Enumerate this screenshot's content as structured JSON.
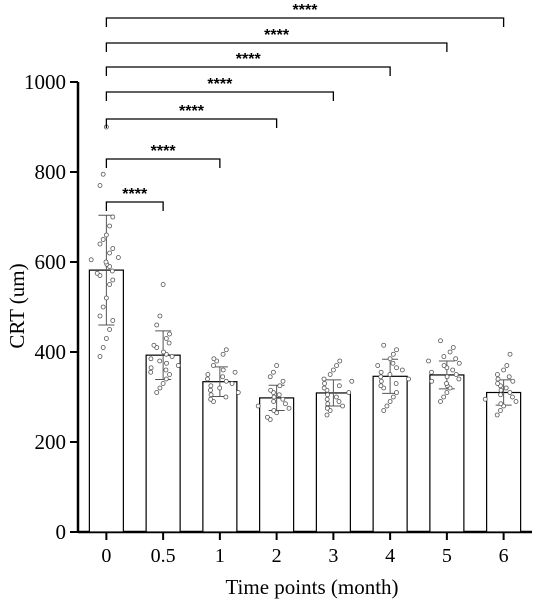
{
  "chart_data": {
    "type": "bar",
    "xlabel": "Time points (month)",
    "ylabel": "CRT (um)",
    "ylim": [
      0,
      1000
    ],
    "yticks": [
      0,
      200,
      400,
      600,
      800,
      1000
    ],
    "grid": false,
    "categories": [
      "0",
      "0.5",
      "1",
      "2",
      "3",
      "4",
      "5",
      "6"
    ],
    "values": [
      582,
      393,
      334,
      298,
      309,
      346,
      349,
      310
    ],
    "error_sd": [
      122,
      54,
      33,
      28,
      29,
      38,
      31,
      28
    ],
    "points": [
      [
        900,
        795,
        770,
        700,
        680,
        660,
        650,
        640,
        630,
        620,
        610,
        605,
        600,
        595,
        590,
        580,
        575,
        570,
        560,
        550,
        520,
        500,
        480,
        470,
        450,
        430,
        410,
        390
      ],
      [
        550,
        480,
        460,
        440,
        430,
        420,
        415,
        410,
        400,
        395,
        390,
        385,
        380,
        375,
        370,
        365,
        360,
        355,
        350,
        340,
        330,
        320,
        310
      ],
      [
        405,
        395,
        385,
        380,
        370,
        360,
        355,
        350,
        345,
        340,
        335,
        330,
        325,
        320,
        315,
        310,
        305,
        300,
        295,
        290
      ],
      [
        370,
        355,
        345,
        335,
        325,
        315,
        310,
        305,
        300,
        295,
        290,
        285,
        280,
        275,
        270,
        265,
        255,
        250
      ],
      [
        380,
        370,
        360,
        350,
        340,
        335,
        330,
        325,
        320,
        315,
        310,
        305,
        300,
        295,
        290,
        285,
        280,
        275,
        270,
        260
      ],
      [
        415,
        405,
        395,
        385,
        375,
        370,
        365,
        360,
        355,
        350,
        345,
        340,
        335,
        330,
        325,
        320,
        310,
        300,
        290,
        280,
        270
      ],
      [
        425,
        410,
        400,
        390,
        385,
        380,
        375,
        370,
        365,
        360,
        355,
        350,
        345,
        340,
        335,
        330,
        325,
        320,
        310,
        300,
        290
      ],
      [
        395,
        370,
        360,
        350,
        345,
        340,
        335,
        330,
        325,
        320,
        315,
        310,
        305,
        300,
        295,
        290,
        285,
        280,
        270,
        260
      ]
    ],
    "comparisons": [
      {
        "from": "0",
        "to": "0.5",
        "label": "****"
      },
      {
        "from": "0",
        "to": "1",
        "label": "****"
      },
      {
        "from": "0",
        "to": "2",
        "label": "****"
      },
      {
        "from": "0",
        "to": "3",
        "label": "****"
      },
      {
        "from": "0",
        "to": "4",
        "label": "****"
      },
      {
        "from": "0",
        "to": "5",
        "label": "****"
      },
      {
        "from": "0",
        "to": "6",
        "label": "****"
      }
    ]
  }
}
